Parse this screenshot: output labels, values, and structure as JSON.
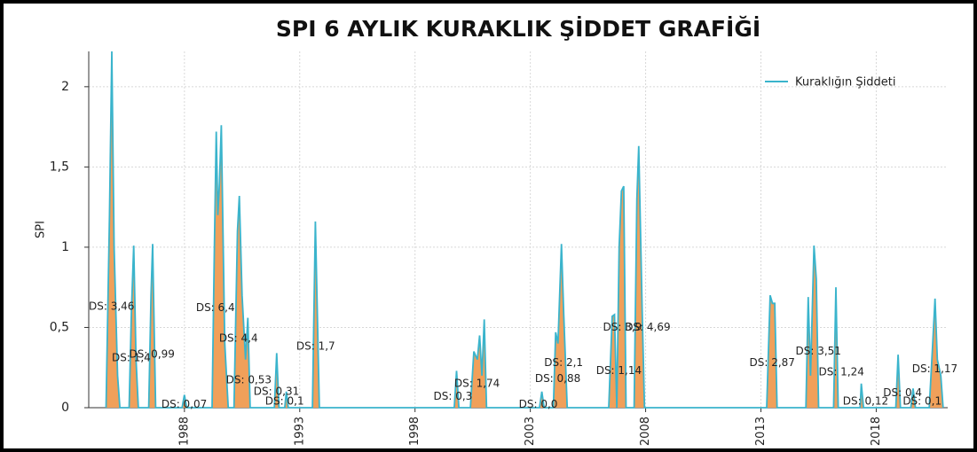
{
  "chart_data": {
    "type": "area",
    "title": "SPI 6 AYLIK KURAKLIK ŞİDDET GRAFİĞİ",
    "y_label": "SPI",
    "legend": "top-right",
    "grid": true,
    "xlim": [
      1983.85,
      2021.1
    ],
    "xticks": [
      1988,
      1993,
      1998,
      2003,
      2008,
      2013,
      2018
    ],
    "ylim": [
      0,
      2.22
    ],
    "yticks": [
      0,
      {
        "value": 0.5,
        "label": "0,5"
      },
      1,
      {
        "value": 1.5,
        "label": "1,5"
      },
      2
    ],
    "x": [
      1984.6,
      1984.75,
      1984.85,
      1984.95,
      1985.1,
      1985.2,
      1985.6,
      1985.7,
      1985.8,
      1985.9,
      1986.0,
      1986.45,
      1986.55,
      1986.62,
      1986.75,
      1987.9,
      1988.0,
      1988.1,
      1989.2,
      1989.3,
      1989.38,
      1989.45,
      1989.52,
      1989.6,
      1989.75,
      1989.9,
      1990.15,
      1990.3,
      1990.38,
      1990.5,
      1990.65,
      1990.75,
      1990.85,
      1991.9,
      1992.0,
      1992.1,
      1992.35,
      1992.42,
      1992.5,
      1993.55,
      1993.68,
      1993.85,
      1999.7,
      1999.8,
      1999.9,
      2000.4,
      2000.55,
      2000.7,
      2000.8,
      2000.9,
      2001.0,
      2001.1,
      2003.4,
      2003.5,
      2003.6,
      2004.0,
      2004.1,
      2004.2,
      2004.35,
      2004.45,
      2004.6,
      2006.4,
      2006.55,
      2006.65,
      2006.75,
      2006.85,
      2006.95,
      2007.05,
      2007.15,
      2007.5,
      2007.62,
      2007.7,
      2007.85,
      2007.95,
      2013.25,
      2013.4,
      2013.5,
      2013.6,
      2013.7,
      2014.95,
      2015.05,
      2015.15,
      2015.3,
      2015.4,
      2015.5,
      2016.15,
      2016.25,
      2016.35,
      2017.3,
      2017.35,
      2017.45,
      2018.85,
      2018.95,
      2019.05,
      2019.5,
      2019.6,
      2019.7,
      2020.3,
      2020.45,
      2020.55,
      2020.65,
      2020.8,
      2020.9
    ],
    "series": [
      {
        "name": "Kuraklığın Şiddeti",
        "color": "#3ab4cc",
        "fill": "#f0a05a",
        "values": [
          0,
          1.2,
          2.22,
          1.0,
          0.2,
          0,
          0,
          0.6,
          1.01,
          0.3,
          0,
          0,
          0.7,
          1.02,
          0,
          0,
          0.08,
          0,
          0,
          1.0,
          1.72,
          1.2,
          1.4,
          1.76,
          0.4,
          0,
          0,
          1.1,
          1.32,
          0.7,
          0.3,
          0.56,
          0,
          0,
          0.34,
          0,
          0,
          0.1,
          0,
          0,
          1.16,
          0,
          0,
          0.23,
          0,
          0,
          0.35,
          0.3,
          0.45,
          0.2,
          0.55,
          0,
          0,
          0.1,
          0,
          0,
          0.47,
          0.4,
          1.02,
          0.58,
          0,
          0,
          0.57,
          0.58,
          0,
          1.0,
          1.35,
          1.38,
          0,
          0,
          1.3,
          1.63,
          0.6,
          0,
          0,
          0.7,
          0.65,
          0.65,
          0,
          0,
          0.69,
          0.2,
          1.01,
          0.8,
          0,
          0,
          0.75,
          0,
          0,
          0.15,
          0,
          0,
          0.33,
          0,
          0,
          0.12,
          0,
          0,
          0.4,
          0.68,
          0.3,
          0.2,
          0
        ]
      }
    ],
    "annotations": [
      {
        "text": "DS: 3,46",
        "x": 1983.85,
        "y": 0.63
      },
      {
        "text": "DS: 1,4",
        "x": 1984.85,
        "y": 0.31
      },
      {
        "text": "DS: 0,99",
        "x": 1985.6,
        "y": 0.33
      },
      {
        "text": "DS: 0,07",
        "x": 1987.0,
        "y": 0.02
      },
      {
        "text": "DS: 6,4",
        "x": 1988.5,
        "y": 0.62
      },
      {
        "text": "DS: 4,4",
        "x": 1989.5,
        "y": 0.43
      },
      {
        "text": "DS: 0,53",
        "x": 1989.8,
        "y": 0.17
      },
      {
        "text": "DS: 0,31",
        "x": 1991.0,
        "y": 0.1
      },
      {
        "text": "DS: 0,1",
        "x": 1991.5,
        "y": 0.04
      },
      {
        "text": "DS: 1,7",
        "x": 1992.85,
        "y": 0.38
      },
      {
        "text": "DS: 0,3",
        "x": 1998.8,
        "y": 0.07
      },
      {
        "text": "DS: 1,74",
        "x": 1999.7,
        "y": 0.15
      },
      {
        "text": "DS: 0,0",
        "x": 2002.5,
        "y": 0.02
      },
      {
        "text": "DS: 0,88",
        "x": 2003.2,
        "y": 0.18
      },
      {
        "text": "DS: 2,1",
        "x": 2003.6,
        "y": 0.28
      },
      {
        "text": "DS: 1,14",
        "x": 2005.85,
        "y": 0.23
      },
      {
        "text": "DS: 3,9",
        "x": 2006.15,
        "y": 0.5
      },
      {
        "text": "DS: 4,69",
        "x": 2007.1,
        "y": 0.5
      },
      {
        "text": "DS: 2,87",
        "x": 2012.5,
        "y": 0.28
      },
      {
        "text": "DS: 3,51",
        "x": 2014.5,
        "y": 0.35
      },
      {
        "text": "DS: 1,24",
        "x": 2015.5,
        "y": 0.22
      },
      {
        "text": "DS: 0,12",
        "x": 2016.55,
        "y": 0.04
      },
      {
        "text": "DS: 0,4",
        "x": 2018.3,
        "y": 0.09
      },
      {
        "text": "DS: 0,1",
        "x": 2019.15,
        "y": 0.04
      },
      {
        "text": "DS: 1,17",
        "x": 2019.55,
        "y": 0.24
      }
    ]
  }
}
